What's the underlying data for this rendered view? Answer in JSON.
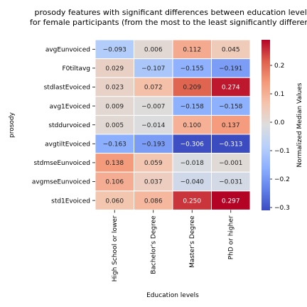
{
  "chart_data": {
    "type": "heatmap",
    "title_lines": [
      "prosody features with significant differences between education levels",
      "for female participants (from the most to the least significantly different)"
    ],
    "xlabel": "Education levels",
    "ylabel": "prosody",
    "colorbar_label": "Normalized Median Values",
    "colormap": "coolwarm",
    "vmin": -0.31,
    "vmax": 0.29,
    "colorbar_ticks": [
      0.2,
      0.1,
      0.0,
      -0.1,
      -0.2,
      -0.3
    ],
    "colorbar_tick_labels": [
      "0.2",
      "0.1",
      "0.0",
      "−0.1",
      "−0.2",
      "−0.3"
    ],
    "columns": [
      "High School or lower",
      "Bachelor's Degree",
      "Master's Degree",
      "PhD or higher"
    ],
    "rows": [
      "avgEunvoiced",
      "F0tiltavg",
      "stdlastEvoiced",
      "avg1Evoiced",
      "stddurvoiced",
      "avgtiltEvoiced",
      "stdmseEunvoiced",
      "avgmseEunvoiced",
      "std1Evoiced"
    ],
    "values": [
      [
        -0.093,
        0.006,
        0.112,
        0.045
      ],
      [
        0.029,
        -0.107,
        -0.155,
        -0.191
      ],
      [
        0.023,
        0.072,
        0.209,
        0.274
      ],
      [
        0.009,
        -0.007,
        -0.158,
        -0.158
      ],
      [
        0.005,
        -0.014,
        0.1,
        0.137
      ],
      [
        -0.163,
        -0.193,
        -0.306,
        -0.313
      ],
      [
        0.138,
        0.059,
        -0.018,
        -0.001
      ],
      [
        0.106,
        0.037,
        -0.04,
        -0.031
      ],
      [
        0.06,
        0.086,
        0.25,
        0.297
      ]
    ],
    "value_labels": [
      [
        "−0.093",
        "0.006",
        "0.112",
        "0.045"
      ],
      [
        "0.029",
        "−0.107",
        "−0.155",
        "−0.191"
      ],
      [
        "0.023",
        "0.072",
        "0.209",
        "0.274"
      ],
      [
        "0.009",
        "−0.007",
        "−0.158",
        "−0.158"
      ],
      [
        "0.005",
        "−0.014",
        "0.100",
        "0.137"
      ],
      [
        "−0.163",
        "−0.193",
        "−0.306",
        "−0.313"
      ],
      [
        "0.138",
        "0.059",
        "−0.018",
        "−0.001"
      ],
      [
        "0.106",
        "0.037",
        "−0.040",
        "−0.031"
      ],
      [
        "0.060",
        "0.086",
        "0.250",
        "0.297"
      ]
    ]
  }
}
